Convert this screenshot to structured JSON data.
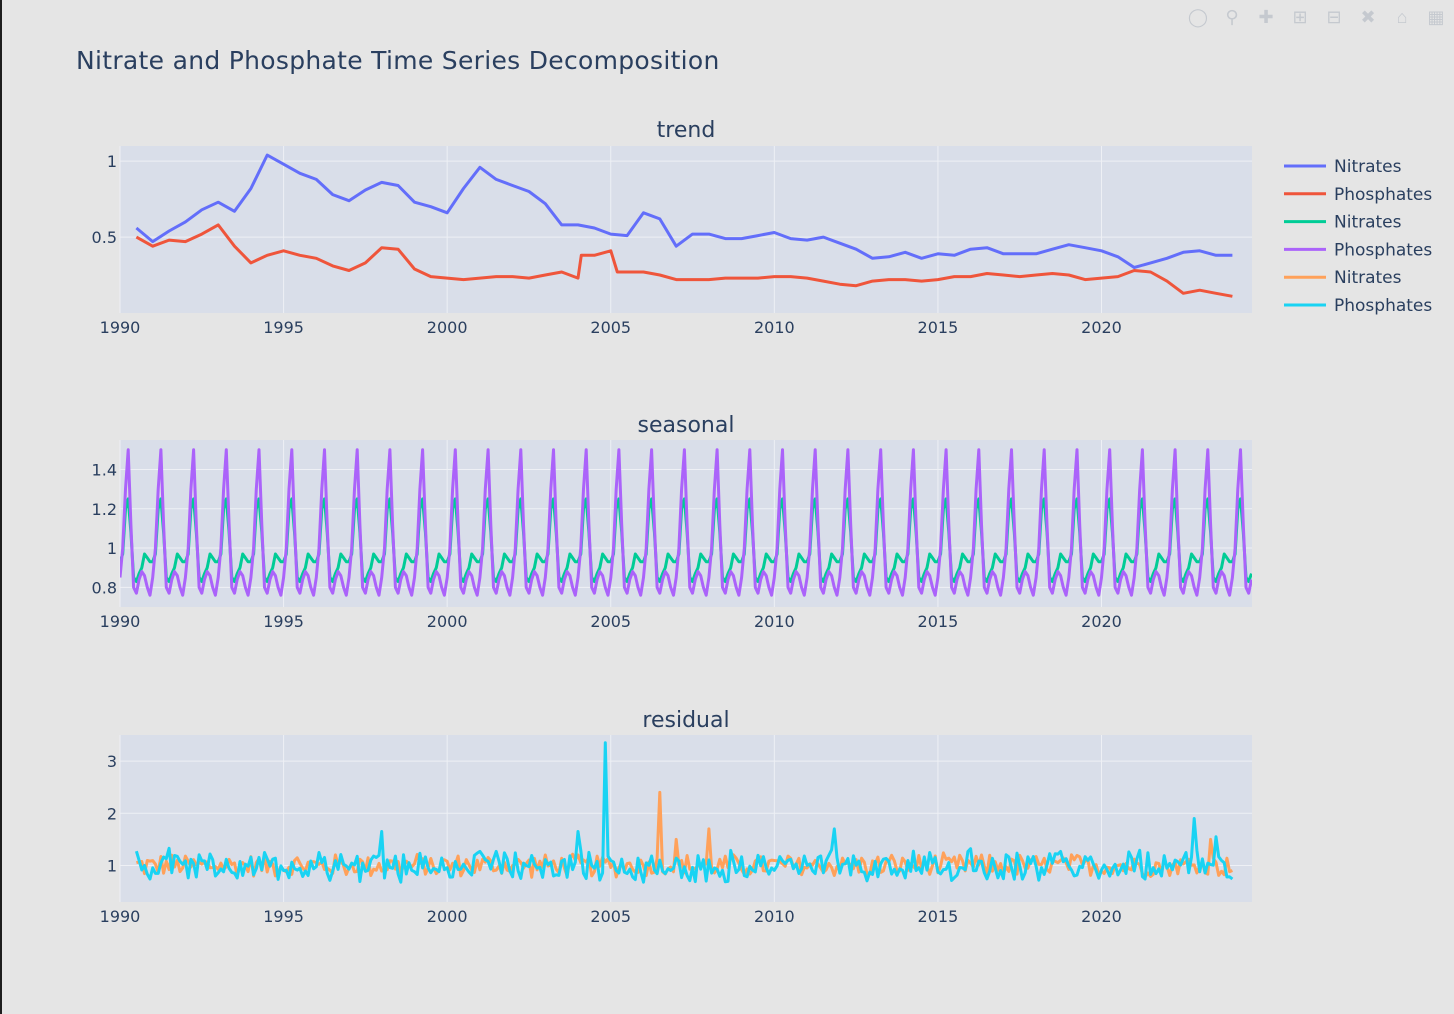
{
  "chart_title": "Nitrate and Phosphate Time Series Decomposition",
  "colors": {
    "plot_bg": "#d9dee9",
    "paper_bg": "#e5e5e5",
    "grid": "#eef0f5",
    "text": "#2a3f5f"
  },
  "modebar_icons": [
    "camera-icon",
    "zoom-icon",
    "pan-icon",
    "zoom-in-icon",
    "zoom-out-icon",
    "autoscale-icon",
    "reset-axes-icon",
    "plotly-logo-icon"
  ],
  "legend": {
    "placement": "right",
    "items": [
      {
        "name": "Nitrates",
        "color": "#636efa"
      },
      {
        "name": "Phosphates",
        "color": "#ef553b"
      },
      {
        "name": "Nitrates",
        "color": "#00cc96"
      },
      {
        "name": "Phosphates",
        "color": "#ab63fa"
      },
      {
        "name": "Nitrates",
        "color": "#ffa15a"
      },
      {
        "name": "Phosphates",
        "color": "#19d3f3"
      }
    ]
  },
  "chart_data": [
    {
      "type": "line",
      "title": "trend",
      "xlim": [
        1990,
        2024.6
      ],
      "ylim": [
        0,
        1.1
      ],
      "xticks": [
        1990,
        1995,
        2000,
        2005,
        2010,
        2015,
        2020
      ],
      "xtick_labels": [
        "1990",
        "1995",
        "2000",
        "2005",
        "2010",
        "2015",
        "2020"
      ],
      "yticks": [
        0.5,
        1
      ],
      "ytick_labels": [
        "0.5",
        "1"
      ],
      "series": [
        {
          "name": "Nitrates",
          "color": "#636efa",
          "x": [
            1990.5,
            1991.0,
            1991.5,
            1992.0,
            1992.5,
            1993.0,
            1993.5,
            1994.0,
            1994.5,
            1995.0,
            1995.5,
            1996.0,
            1996.5,
            1997.0,
            1997.5,
            1998.0,
            1998.5,
            1999.0,
            1999.5,
            2000.0,
            2000.5,
            2001.0,
            2001.5,
            2002.0,
            2002.5,
            2003.0,
            2003.5,
            2004.0,
            2004.5,
            2005.0,
            2005.5,
            2006.0,
            2006.5,
            2007.0,
            2007.5,
            2008.0,
            2008.5,
            2009.0,
            2009.5,
            2010.0,
            2010.5,
            2011.0,
            2011.5,
            2012.0,
            2012.5,
            2013.0,
            2013.5,
            2014.0,
            2014.5,
            2015.0,
            2015.5,
            2016.0,
            2016.5,
            2017.0,
            2017.5,
            2018.0,
            2018.5,
            2019.0,
            2019.5,
            2020.0,
            2020.5,
            2021.0,
            2021.5,
            2022.0,
            2022.5,
            2023.0,
            2023.5,
            2024.0
          ],
          "y": [
            0.56,
            0.47,
            0.54,
            0.6,
            0.68,
            0.73,
            0.67,
            0.82,
            1.04,
            0.98,
            0.92,
            0.88,
            0.78,
            0.74,
            0.81,
            0.86,
            0.84,
            0.73,
            0.7,
            0.66,
            0.82,
            0.96,
            0.88,
            0.84,
            0.8,
            0.72,
            0.58,
            0.58,
            0.56,
            0.52,
            0.51,
            0.66,
            0.62,
            0.44,
            0.52,
            0.52,
            0.49,
            0.49,
            0.51,
            0.53,
            0.49,
            0.48,
            0.5,
            0.46,
            0.42,
            0.36,
            0.37,
            0.4,
            0.36,
            0.39,
            0.38,
            0.42,
            0.43,
            0.39,
            0.39,
            0.39,
            0.42,
            0.45,
            0.43,
            0.41,
            0.37,
            0.3,
            0.33,
            0.36,
            0.4,
            0.41,
            0.38,
            0.38
          ]
        },
        {
          "name": "Phosphates",
          "color": "#ef553b",
          "x": [
            1990.5,
            1991.0,
            1991.5,
            1992.0,
            1992.5,
            1993.0,
            1993.5,
            1994.0,
            1994.5,
            1995.0,
            1995.5,
            1996.0,
            1996.5,
            1997.0,
            1997.5,
            1998.0,
            1998.5,
            1999.0,
            1999.5,
            2000.0,
            2000.5,
            2001.0,
            2001.5,
            2002.0,
            2002.5,
            2003.0,
            2003.5,
            2004.0,
            2004.1,
            2004.5,
            2005.0,
            2005.2,
            2005.5,
            2006.0,
            2006.5,
            2007.0,
            2007.5,
            2008.0,
            2008.5,
            2009.0,
            2009.5,
            2010.0,
            2010.5,
            2011.0,
            2011.5,
            2012.0,
            2012.5,
            2013.0,
            2013.5,
            2014.0,
            2014.5,
            2015.0,
            2015.5,
            2016.0,
            2016.5,
            2017.0,
            2017.5,
            2018.0,
            2018.5,
            2019.0,
            2019.5,
            2020.0,
            2020.5,
            2021.0,
            2021.5,
            2022.0,
            2022.5,
            2023.0,
            2023.5,
            2024.0
          ],
          "y": [
            0.5,
            0.44,
            0.48,
            0.47,
            0.52,
            0.58,
            0.44,
            0.33,
            0.38,
            0.41,
            0.38,
            0.36,
            0.31,
            0.28,
            0.33,
            0.43,
            0.42,
            0.29,
            0.24,
            0.23,
            0.22,
            0.23,
            0.24,
            0.24,
            0.23,
            0.25,
            0.27,
            0.23,
            0.38,
            0.38,
            0.41,
            0.27,
            0.27,
            0.27,
            0.25,
            0.22,
            0.22,
            0.22,
            0.23,
            0.23,
            0.23,
            0.24,
            0.24,
            0.23,
            0.21,
            0.19,
            0.18,
            0.21,
            0.22,
            0.22,
            0.21,
            0.22,
            0.24,
            0.24,
            0.26,
            0.25,
            0.24,
            0.25,
            0.26,
            0.25,
            0.22,
            0.23,
            0.24,
            0.28,
            0.27,
            0.21,
            0.13,
            0.15,
            0.13,
            0.11
          ]
        }
      ]
    },
    {
      "type": "line",
      "title": "seasonal",
      "xlim": [
        1990,
        2024.6
      ],
      "ylim": [
        0.7,
        1.55
      ],
      "xticks": [
        1990,
        1995,
        2000,
        2005,
        2010,
        2015,
        2020
      ],
      "xtick_labels": [
        "1990",
        "1995",
        "2000",
        "2005",
        "2010",
        "2015",
        "2020"
      ],
      "yticks": [
        0.8,
        1,
        1.2,
        1.4
      ],
      "ytick_labels": [
        "0.8",
        "1",
        "1.2",
        "1.4"
      ],
      "period_years": 1,
      "series": [
        {
          "name": "Nitrates",
          "color": "#00cc96",
          "one_year_monthly": [
            0.93,
            0.97,
            1.2,
            1.25,
            1.08,
            0.85,
            0.83,
            0.87,
            0.9,
            0.97,
            0.95,
            0.93
          ]
        },
        {
          "name": "Phosphates",
          "color": "#ab63fa",
          "one_year_monthly": [
            0.85,
            1.0,
            1.3,
            1.5,
            1.12,
            0.8,
            0.77,
            0.84,
            0.88,
            0.86,
            0.8,
            0.76
          ]
        }
      ]
    },
    {
      "type": "line",
      "title": "residual",
      "xlim": [
        1990,
        2024.6
      ],
      "ylim": [
        0.3,
        3.5
      ],
      "xticks": [
        1990,
        1995,
        2000,
        2005,
        2010,
        2015,
        2020
      ],
      "xtick_labels": [
        "1990",
        "1995",
        "2000",
        "2005",
        "2010",
        "2015",
        "2020"
      ],
      "yticks": [
        1,
        2,
        3
      ],
      "ytick_labels": [
        "1",
        "2",
        "3"
      ],
      "series": [
        {
          "name": "Nitrates",
          "color": "#ffa15a",
          "x_start": 1990.5,
          "x_end": 2024.0,
          "typical_range": [
            0.75,
            1.25
          ],
          "spikes": [
            {
              "x": 2006.5,
              "y": 2.4
            },
            {
              "x": 2007.0,
              "y": 1.5
            },
            {
              "x": 2008.0,
              "y": 1.7
            },
            {
              "x": 2023.3,
              "y": 1.5
            }
          ]
        },
        {
          "name": "Phosphates",
          "color": "#19d3f3",
          "x_start": 1990.5,
          "x_end": 2024.0,
          "typical_range": [
            0.65,
            1.35
          ],
          "spikes": [
            {
              "x": 1998.0,
              "y": 1.65
            },
            {
              "x": 2004.0,
              "y": 1.65
            },
            {
              "x": 2004.8,
              "y": 3.35
            },
            {
              "x": 2011.8,
              "y": 1.7
            },
            {
              "x": 2022.8,
              "y": 1.9
            },
            {
              "x": 2023.5,
              "y": 1.55
            }
          ]
        }
      ]
    }
  ]
}
